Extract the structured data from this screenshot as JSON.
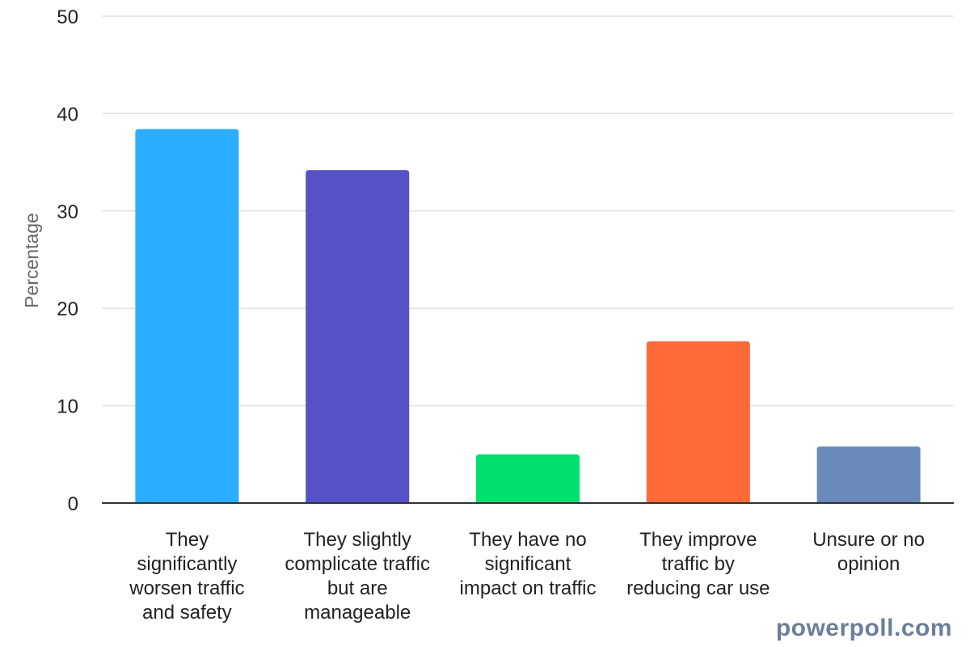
{
  "chart_data": {
    "type": "bar",
    "title": "",
    "xlabel": "",
    "ylabel": "Percentage",
    "ylim": [
      0,
      50
    ],
    "yticks": [
      0,
      10,
      20,
      30,
      40,
      50
    ],
    "grid": true,
    "categories": [
      "They significantly worsen traffic and safety",
      "They slightly complicate traffic but are manageable",
      "They have no significant impact on traffic",
      "They improve traffic by reducing car use",
      "Unsure or no opinion"
    ],
    "category_lines": [
      [
        "They",
        "significantly",
        "worsen traffic",
        "and safety"
      ],
      [
        "They slightly",
        "complicate traffic",
        "but are",
        "manageable"
      ],
      [
        "They have no",
        "significant",
        "impact on traffic"
      ],
      [
        "They improve",
        "traffic by",
        "reducing car use"
      ],
      [
        "Unsure or no",
        "opinion"
      ]
    ],
    "values": [
      38.4,
      34.2,
      5.0,
      16.6,
      5.8
    ],
    "colors": [
      "#2baeff",
      "#5552c8",
      "#00e06e",
      "#ff6a38",
      "#6a8aba"
    ]
  },
  "watermark": "powerpoll.com"
}
